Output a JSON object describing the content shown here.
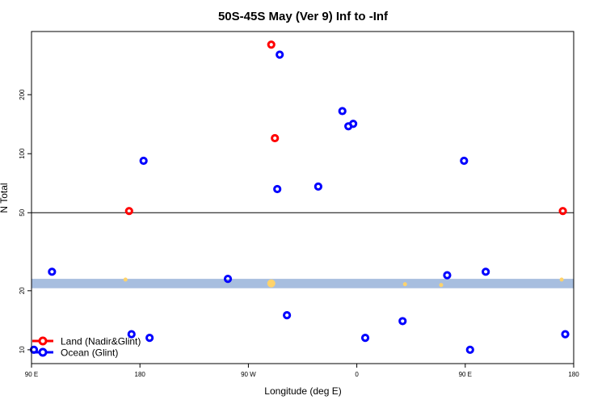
{
  "chart_data": {
    "type": "scatter",
    "title": "50S-45S May (Ver 9)   Inf to -Inf",
    "xlabel": "Longitude (deg E)",
    "ylabel": "N Total",
    "x_ticks": [
      "90 E",
      "180",
      "90 W",
      "0",
      "90 E",
      "180"
    ],
    "x_tick_values": [
      -270,
      -180,
      -90,
      0,
      90,
      180
    ],
    "xlim": [
      -270,
      180
    ],
    "y_scale": "log",
    "y_ticks": [
      10,
      20,
      50,
      100,
      200
    ],
    "ylim": [
      8.5,
      420
    ],
    "reference_line_y": 50,
    "band": {
      "y_low": 20.6,
      "y_high": 23.0,
      "color": "#a7bedf"
    },
    "grid": false,
    "legend_position": "bottom-left",
    "series": [
      {
        "name": "Land (Nadir&Glint)",
        "color": "#ff0000",
        "points": [
          {
            "x": -71,
            "y": 360
          },
          {
            "x": -68,
            "y": 120
          },
          {
            "x": -189,
            "y": 51
          },
          {
            "x": 171,
            "y": 51
          }
        ]
      },
      {
        "name": "Ocean (Glint)",
        "color": "#0000ff",
        "points": [
          {
            "x": -64,
            "y": 320
          },
          {
            "x": -12,
            "y": 165
          },
          {
            "x": -7,
            "y": 138
          },
          {
            "x": -3,
            "y": 142
          },
          {
            "x": -177,
            "y": 92
          },
          {
            "x": -66,
            "y": 66
          },
          {
            "x": -32,
            "y": 68
          },
          {
            "x": 89,
            "y": 92
          },
          {
            "x": -253,
            "y": 25
          },
          {
            "x": -107,
            "y": 23
          },
          {
            "x": 75,
            "y": 24
          },
          {
            "x": 107,
            "y": 25
          },
          {
            "x": -58,
            "y": 15
          },
          {
            "x": 38,
            "y": 14
          },
          {
            "x": -187,
            "y": 12
          },
          {
            "x": -172,
            "y": 11.5
          },
          {
            "x": 7,
            "y": 11.5
          },
          {
            "x": 173,
            "y": 12
          },
          {
            "x": 94,
            "y": 10
          },
          {
            "x": -268,
            "y": 10
          }
        ]
      }
    ],
    "band_markers": {
      "color": "#ffd36b",
      "points": [
        {
          "x": -192,
          "y": 22.8
        },
        {
          "x": -71,
          "y": 21.8
        },
        {
          "x": 40,
          "y": 21.6
        },
        {
          "x": 70,
          "y": 21.4
        },
        {
          "x": 170,
          "y": 22.8
        }
      ]
    }
  }
}
